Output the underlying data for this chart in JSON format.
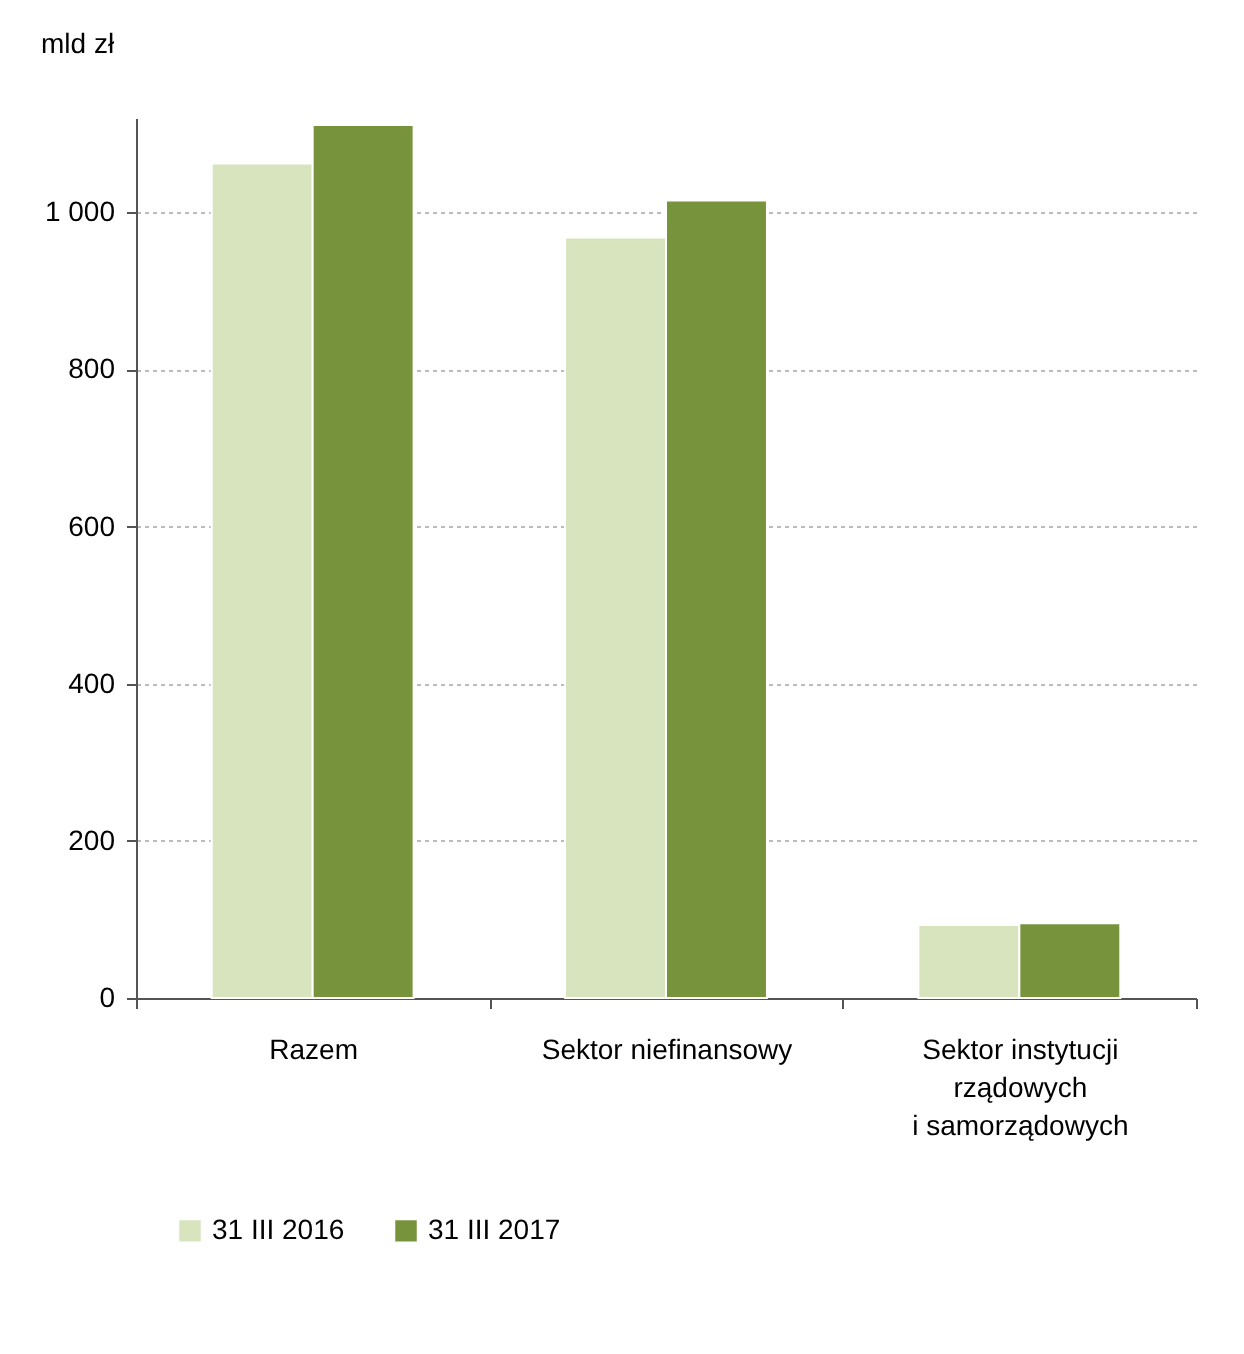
{
  "chart_data": {
    "type": "bar",
    "ylabel": "mld zł",
    "categories": [
      "Razem",
      "Sektor niefinansowy",
      "Sektor instytucji rządowych i samorządowych"
    ],
    "series": [
      {
        "name": "31 III 2016",
        "color": "#d7e4bd",
        "values": [
          1062,
          968,
          93
        ]
      },
      {
        "name": "31 III 2017",
        "color": "#77933c",
        "values": [
          1111,
          1015,
          95
        ]
      }
    ],
    "ylim": [
      0,
      1120
    ],
    "yticks": [
      0,
      200,
      400,
      600,
      800,
      {
        "value": 1000,
        "label": "1 000"
      }
    ],
    "grid": "y",
    "legend": "bottom"
  }
}
